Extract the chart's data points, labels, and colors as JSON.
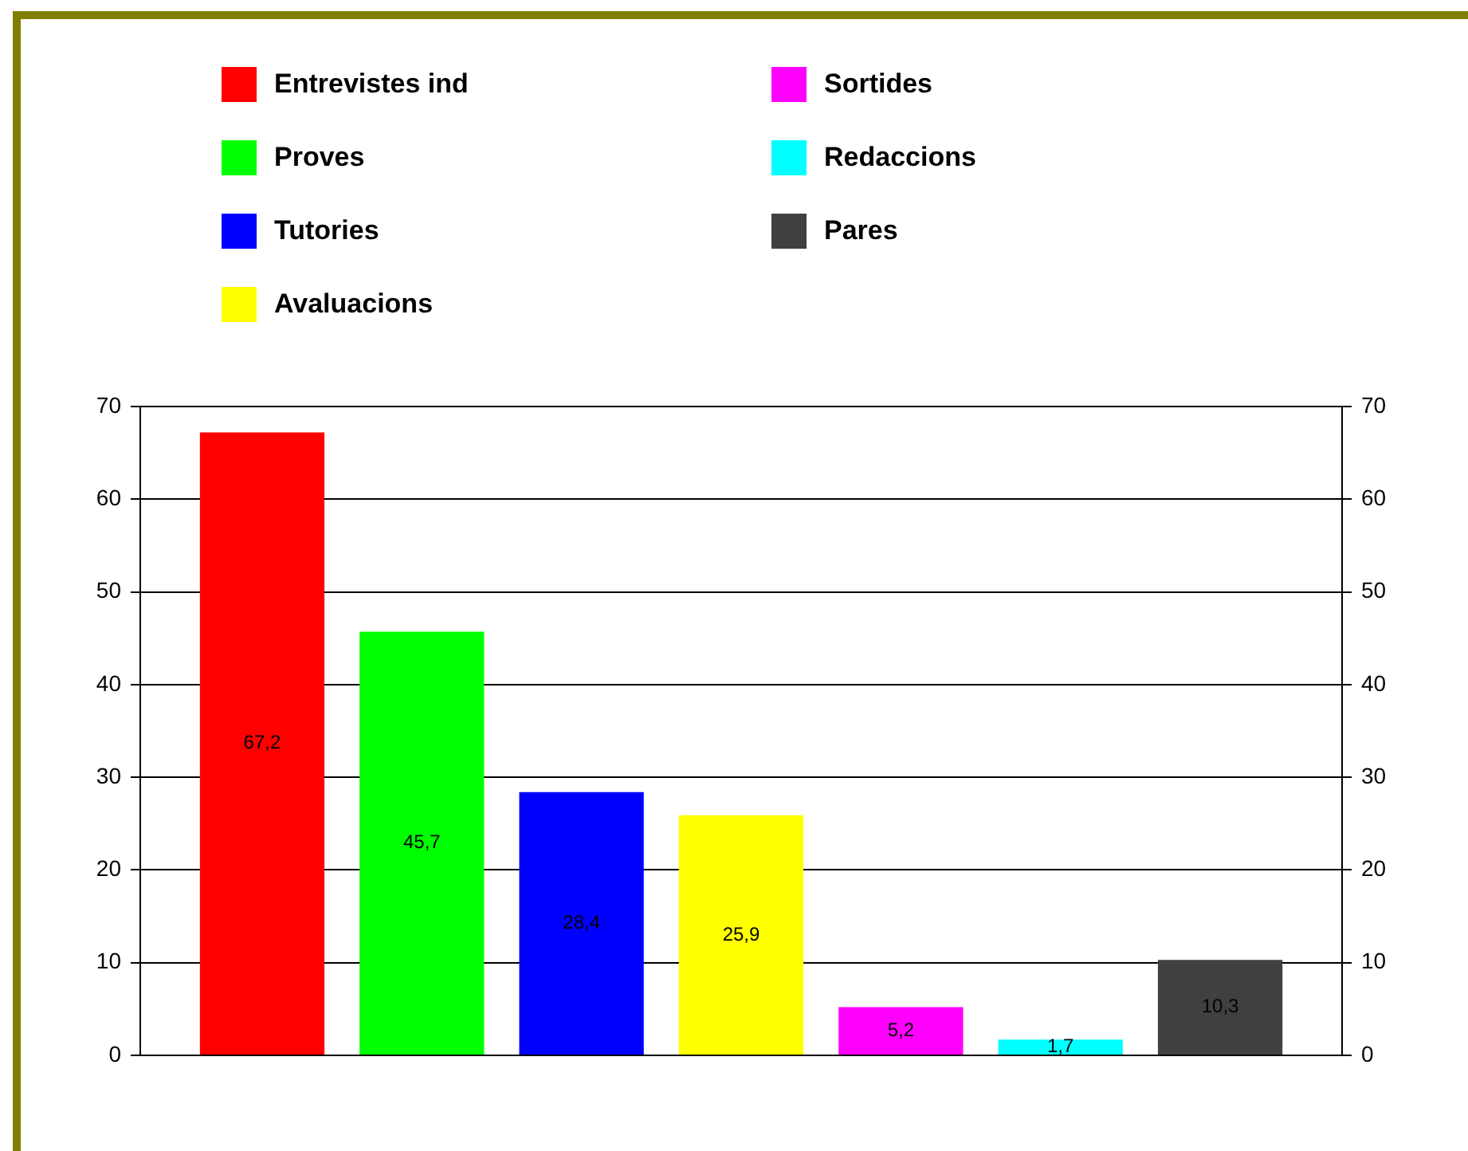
{
  "chart_data": {
    "type": "bar",
    "categories": [
      null
    ],
    "series": [
      {
        "name": "Entrevistes ind",
        "color": "#ff0000",
        "values": [
          67.2
        ],
        "value_labels": [
          "67,2"
        ]
      },
      {
        "name": "Proves",
        "color": "#00ff00",
        "values": [
          45.7
        ],
        "value_labels": [
          "45,7"
        ]
      },
      {
        "name": "Tutories",
        "color": "#0000ff",
        "values": [
          28.4
        ],
        "value_labels": [
          "28,4"
        ]
      },
      {
        "name": "Avaluacions",
        "color": "#ffff00",
        "values": [
          25.9
        ],
        "value_labels": [
          "25,9"
        ]
      },
      {
        "name": "Sortides",
        "color": "#ff00ff",
        "values": [
          5.2
        ],
        "value_labels": [
          "5,2"
        ]
      },
      {
        "name": "Redaccions",
        "color": "#00ffff",
        "values": [
          1.7
        ],
        "value_labels": [
          "1,7"
        ]
      },
      {
        "name": "Pares",
        "color": "#404040",
        "values": [
          10.3
        ],
        "value_labels": [
          "10,3"
        ]
      }
    ],
    "ylim": [
      0,
      70
    ],
    "yticks": [
      0,
      10,
      20,
      30,
      40,
      50,
      60,
      70
    ],
    "y2lim": [
      0,
      70
    ],
    "y2ticks": [
      0,
      10,
      20,
      30,
      40,
      50,
      60,
      70
    ],
    "grid": "y",
    "legend": "top",
    "tick_labels": "y"
  }
}
